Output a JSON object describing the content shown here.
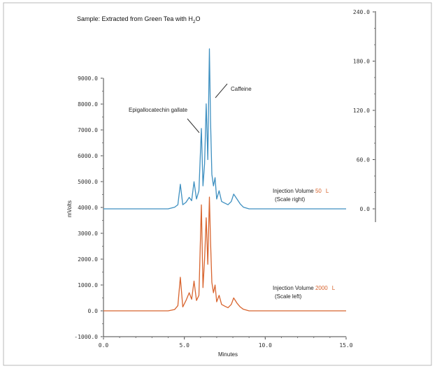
{
  "chart_data": {
    "type": "line",
    "title_prefix": "Sample: Extracted from Green Tea with H",
    "title_sub": "2",
    "title_suffix": "O",
    "xlabel": "Minutes",
    "ylabel": "mVolts",
    "xlim": [
      0.0,
      15.0
    ],
    "x_ticks": [
      "0.0",
      "5.0",
      "10.0",
      "15.0"
    ],
    "ylim_left": [
      -1000.0,
      9000.0
    ],
    "y_left_ticks": [
      "-1000.0",
      "0.0",
      "1000.0",
      "2000.0",
      "3000.0",
      "4000.0",
      "5000.0",
      "6000.0",
      "7000.0",
      "8000.0",
      "9000.0"
    ],
    "ylim_right": [
      0.0,
      240.0
    ],
    "y_right_ticks": [
      "0.0",
      "60.0",
      "120.0",
      "180.0",
      "240.0"
    ],
    "annotations": {
      "peak_egcg": "Epigallocatechin gallate",
      "peak_caffeine": "Caffeine",
      "blue_label_a": "Injection Volume ",
      "blue_vol": "50",
      "blue_unit": "L",
      "blue_scale": "(Scale right)",
      "red_label_a": "Injection Volume ",
      "red_vol": "2000",
      "red_unit": "L",
      "red_scale": "(Scale left)"
    },
    "series": [
      {
        "color": "#3d8fc0",
        "axis": "right",
        "x": [
          0.0,
          4.0,
          4.4,
          4.6,
          4.75,
          4.9,
          5.1,
          5.3,
          5.45,
          5.6,
          5.75,
          5.9,
          6.05,
          6.15,
          6.25,
          6.35,
          6.45,
          6.55,
          6.62,
          6.7,
          6.8,
          6.9,
          7.0,
          7.15,
          7.3,
          7.5,
          7.7,
          7.9,
          8.05,
          8.25,
          8.45,
          8.65,
          9.0,
          9.5,
          15.0
        ],
        "y": [
          0.0,
          0.0,
          2.0,
          5.0,
          30.0,
          5.0,
          8.0,
          14.0,
          10.0,
          33.0,
          12.0,
          22.0,
          98.0,
          28.0,
          55.0,
          128.0,
          60.0,
          195.0,
          108.0,
          42.0,
          28.0,
          38.0,
          12.0,
          22.0,
          9.0,
          7.0,
          5.0,
          9.0,
          18.0,
          12.0,
          6.0,
          2.0,
          0.0,
          0.0,
          0.0
        ]
      },
      {
        "color": "#d8642e",
        "axis": "left",
        "x": [
          0.0,
          4.0,
          4.4,
          4.6,
          4.75,
          4.9,
          5.1,
          5.3,
          5.45,
          5.6,
          5.75,
          5.9,
          6.05,
          6.15,
          6.25,
          6.35,
          6.45,
          6.55,
          6.62,
          6.7,
          6.8,
          6.9,
          7.0,
          7.15,
          7.3,
          7.5,
          7.7,
          7.9,
          8.05,
          8.25,
          8.45,
          8.65,
          9.0,
          9.5,
          15.0
        ],
        "y": [
          0.0,
          0.0,
          50.0,
          200.0,
          1300.0,
          150.0,
          400.0,
          700.0,
          450.0,
          1150.0,
          400.0,
          600.0,
          4100.0,
          900.0,
          2000.0,
          3600.0,
          1800.0,
          4400.0,
          2700.0,
          1100.0,
          700.0,
          1000.0,
          350.0,
          600.0,
          250.0,
          180.0,
          120.0,
          250.0,
          500.0,
          300.0,
          150.0,
          60.0,
          0.0,
          0.0,
          0.0
        ]
      }
    ]
  }
}
